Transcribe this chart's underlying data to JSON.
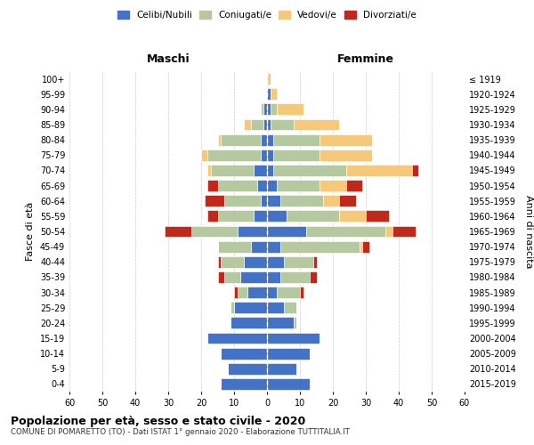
{
  "age_groups": [
    "0-4",
    "5-9",
    "10-14",
    "15-19",
    "20-24",
    "25-29",
    "30-34",
    "35-39",
    "40-44",
    "45-49",
    "50-54",
    "55-59",
    "60-64",
    "65-69",
    "70-74",
    "75-79",
    "80-84",
    "85-89",
    "90-94",
    "95-99",
    "100+"
  ],
  "birth_years": [
    "2015-2019",
    "2010-2014",
    "2005-2009",
    "2000-2004",
    "1995-1999",
    "1990-1994",
    "1985-1989",
    "1980-1984",
    "1975-1979",
    "1970-1974",
    "1965-1969",
    "1960-1964",
    "1955-1959",
    "1950-1954",
    "1945-1949",
    "1940-1944",
    "1935-1939",
    "1930-1934",
    "1925-1929",
    "1920-1924",
    "≤ 1919"
  ],
  "colors": {
    "celibe": "#4472C4",
    "coniugato": "#B5C9A1",
    "vedovo": "#F5C87A",
    "divorziato": "#C0281C"
  },
  "maschi": {
    "celibe": [
      14,
      12,
      14,
      18,
      11,
      10,
      6,
      8,
      7,
      5,
      9,
      4,
      2,
      3,
      4,
      2,
      2,
      1,
      1,
      0,
      0
    ],
    "coniugato": [
      0,
      0,
      0,
      0,
      0,
      1,
      3,
      5,
      7,
      10,
      14,
      11,
      11,
      12,
      13,
      16,
      12,
      4,
      1,
      0,
      0
    ],
    "vedovo": [
      0,
      0,
      0,
      0,
      0,
      0,
      0,
      0,
      0,
      0,
      0,
      0,
      0,
      0,
      1,
      2,
      1,
      2,
      0,
      0,
      0
    ],
    "divorziato": [
      0,
      0,
      0,
      0,
      0,
      0,
      1,
      2,
      1,
      0,
      8,
      3,
      6,
      3,
      0,
      0,
      0,
      0,
      0,
      0,
      0
    ]
  },
  "femmine": {
    "celibe": [
      13,
      9,
      13,
      16,
      8,
      5,
      3,
      4,
      5,
      4,
      12,
      6,
      4,
      3,
      2,
      2,
      2,
      1,
      1,
      1,
      0
    ],
    "coniugato": [
      0,
      0,
      0,
      0,
      1,
      4,
      7,
      9,
      9,
      24,
      24,
      16,
      13,
      13,
      22,
      14,
      14,
      7,
      2,
      0,
      0
    ],
    "vedovo": [
      0,
      0,
      0,
      0,
      0,
      0,
      0,
      0,
      0,
      1,
      2,
      8,
      5,
      8,
      20,
      16,
      16,
      14,
      8,
      2,
      1
    ],
    "divorziato": [
      0,
      0,
      0,
      0,
      0,
      0,
      1,
      2,
      1,
      2,
      7,
      7,
      5,
      5,
      2,
      0,
      0,
      0,
      0,
      0,
      0
    ]
  },
  "xlim": 60,
  "title": "Popolazione per età, sesso e stato civile - 2020",
  "subtitle": "COMUNE DI POMARETTO (TO) - Dati ISTAT 1° gennaio 2020 - Elaborazione TUTTITALIA.IT",
  "ylabel_left": "Fasce di età",
  "ylabel_right": "Anni di nascita",
  "header_left": "Maschi",
  "header_right": "Femmine",
  "legend_labels": [
    "Celibi/Nubili",
    "Coniugati/e",
    "Vedovi/e",
    "Divorziati/e"
  ],
  "legend_colors": [
    "#4472C4",
    "#B5C9A1",
    "#F5C87A",
    "#C0281C"
  ],
  "bg_color": "#FFFFFF",
  "grid_color": "#CCCCCC",
  "bar_height": 0.75
}
